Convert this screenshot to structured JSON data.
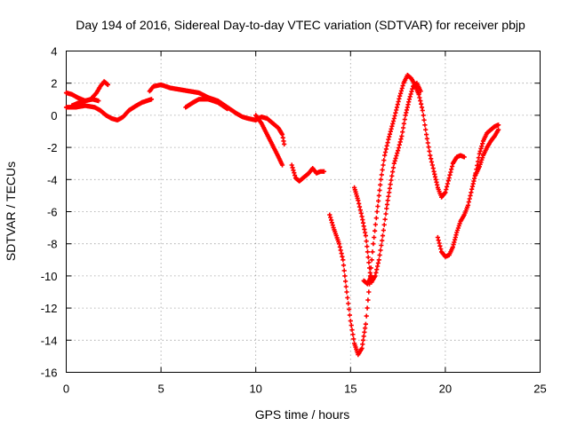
{
  "chart_data": {
    "type": "scatter",
    "title": "Day 194 of 2016, Sidereal Day-to-day VTEC variation (SDTVAR) for receiver pbjp",
    "xlabel": "GPS time / hours",
    "ylabel": "SDTVAR / TECUs",
    "xlim": [
      0,
      25
    ],
    "ylim": [
      -16,
      4
    ],
    "xticks": [
      0,
      5,
      10,
      15,
      20,
      25
    ],
    "yticks": [
      4,
      2,
      0,
      -2,
      -4,
      -6,
      -8,
      -10,
      -12,
      -14,
      -16
    ],
    "grid": true,
    "legend": "none",
    "marker": "plus",
    "color": "#ff0000",
    "series": [
      {
        "segments": [
          [
            [
              0.0,
              1.4
            ],
            [
              0.3,
              1.3
            ],
            [
              0.6,
              1.1
            ],
            [
              1.0,
              0.9
            ],
            [
              1.3,
              1.0
            ],
            [
              1.6,
              1.4
            ],
            [
              1.8,
              1.8
            ],
            [
              2.0,
              2.1
            ],
            [
              2.2,
              1.9
            ]
          ],
          [
            [
              0.0,
              0.5
            ],
            [
              0.5,
              0.5
            ],
            [
              1.0,
              0.6
            ],
            [
              1.5,
              0.5
            ],
            [
              1.8,
              0.3
            ],
            [
              2.1,
              0.0
            ],
            [
              2.4,
              -0.2
            ],
            [
              2.7,
              -0.3
            ],
            [
              3.0,
              -0.1
            ],
            [
              3.3,
              0.3
            ],
            [
              3.7,
              0.6
            ],
            [
              4.0,
              0.8
            ],
            [
              4.5,
              1.0
            ]
          ],
          [
            [
              0.3,
              0.6
            ],
            [
              0.7,
              0.8
            ],
            [
              1.0,
              0.9
            ],
            [
              1.4,
              1.0
            ],
            [
              1.7,
              0.9
            ]
          ],
          [
            [
              4.4,
              1.5
            ],
            [
              4.6,
              1.8
            ],
            [
              5.0,
              1.9
            ],
            [
              5.5,
              1.7
            ],
            [
              6.0,
              1.6
            ],
            [
              6.5,
              1.5
            ],
            [
              7.0,
              1.4
            ],
            [
              7.5,
              1.1
            ],
            [
              8.0,
              0.9
            ],
            [
              8.5,
              0.5
            ],
            [
              9.0,
              0.1
            ],
            [
              9.3,
              -0.1
            ],
            [
              9.6,
              -0.2
            ],
            [
              10.0,
              -0.3
            ],
            [
              10.3,
              -0.1
            ],
            [
              10.6,
              -0.2
            ],
            [
              11.0,
              -0.6
            ],
            [
              11.2,
              -0.8
            ],
            [
              11.4,
              -1.2
            ],
            [
              11.5,
              -1.8
            ]
          ],
          [
            [
              6.3,
              0.5
            ],
            [
              6.7,
              0.8
            ],
            [
              7.0,
              1.0
            ],
            [
              7.5,
              1.0
            ],
            [
              8.0,
              0.8
            ],
            [
              8.5,
              0.4
            ]
          ],
          [
            [
              10.0,
              0.0
            ],
            [
              10.3,
              -0.5
            ],
            [
              10.6,
              -1.2
            ],
            [
              10.9,
              -1.9
            ],
            [
              11.2,
              -2.6
            ],
            [
              11.4,
              -3.1
            ]
          ],
          [
            [
              11.9,
              -3.1
            ],
            [
              12.1,
              -3.9
            ],
            [
              12.3,
              -4.1
            ],
            [
              12.6,
              -3.8
            ],
            [
              12.8,
              -3.6
            ],
            [
              13.0,
              -3.3
            ],
            [
              13.2,
              -3.6
            ],
            [
              13.4,
              -3.5
            ],
            [
              13.6,
              -3.5
            ]
          ],
          [
            [
              13.9,
              -6.2
            ],
            [
              14.1,
              -7.0
            ],
            [
              14.4,
              -8.0
            ],
            [
              14.6,
              -9.0
            ],
            [
              14.8,
              -11.0
            ],
            [
              15.0,
              -12.8
            ],
            [
              15.2,
              -14.2
            ],
            [
              15.4,
              -14.9
            ],
            [
              15.6,
              -14.5
            ],
            [
              15.8,
              -13.0
            ],
            [
              16.0,
              -10.5
            ],
            [
              16.2,
              -8.0
            ],
            [
              16.4,
              -6.0
            ],
            [
              16.6,
              -4.0
            ],
            [
              16.8,
              -2.5
            ],
            [
              17.0,
              -1.5
            ],
            [
              17.3,
              -0.2
            ],
            [
              17.6,
              1.2
            ],
            [
              17.8,
              2.0
            ],
            [
              18.0,
              2.5
            ],
            [
              18.2,
              2.3
            ],
            [
              18.4,
              1.9
            ],
            [
              18.6,
              1.3
            ],
            [
              18.8,
              0.3
            ],
            [
              19.0,
              -1.2
            ],
            [
              19.2,
              -2.5
            ],
            [
              19.4,
              -3.5
            ],
            [
              19.6,
              -4.5
            ],
            [
              19.8,
              -5.1
            ],
            [
              20.0,
              -4.8
            ],
            [
              20.2,
              -3.9
            ],
            [
              20.4,
              -3.0
            ],
            [
              20.6,
              -2.6
            ],
            [
              20.8,
              -2.5
            ],
            [
              21.0,
              -2.6
            ]
          ],
          [
            [
              15.2,
              -4.5
            ],
            [
              15.4,
              -5.3
            ],
            [
              15.6,
              -6.3
            ],
            [
              15.8,
              -7.5
            ],
            [
              15.9,
              -8.5
            ],
            [
              16.0,
              -9.5
            ],
            [
              16.1,
              -10.4
            ],
            [
              16.3,
              -10.0
            ],
            [
              16.5,
              -9.0
            ],
            [
              16.7,
              -7.5
            ],
            [
              16.9,
              -5.8
            ],
            [
              17.1,
              -4.3
            ],
            [
              17.3,
              -3.0
            ],
            [
              17.5,
              -2.2
            ],
            [
              17.7,
              -1.3
            ],
            [
              17.9,
              0.0
            ],
            [
              18.1,
              1.0
            ],
            [
              18.3,
              1.8
            ],
            [
              18.5,
              2.0
            ],
            [
              18.7,
              1.5
            ]
          ],
          [
            [
              15.7,
              -10.3
            ],
            [
              15.9,
              -10.5
            ],
            [
              16.1,
              -10.0
            ]
          ],
          [
            [
              19.6,
              -7.6
            ],
            [
              19.8,
              -8.5
            ],
            [
              20.0,
              -8.8
            ],
            [
              20.2,
              -8.7
            ],
            [
              20.4,
              -8.2
            ],
            [
              20.6,
              -7.3
            ],
            [
              20.8,
              -6.6
            ],
            [
              21.0,
              -6.2
            ],
            [
              21.2,
              -5.6
            ],
            [
              21.4,
              -4.6
            ],
            [
              21.6,
              -3.6
            ],
            [
              21.8,
              -2.4
            ],
            [
              22.0,
              -1.6
            ],
            [
              22.2,
              -1.1
            ],
            [
              22.4,
              -0.9
            ],
            [
              22.6,
              -0.7
            ],
            [
              22.8,
              -0.6
            ]
          ],
          [
            [
              21.6,
              -3.7
            ],
            [
              21.8,
              -3.2
            ],
            [
              22.0,
              -2.5
            ],
            [
              22.2,
              -2.0
            ],
            [
              22.4,
              -1.6
            ],
            [
              22.6,
              -1.3
            ],
            [
              22.8,
              -0.9
            ]
          ]
        ]
      }
    ]
  }
}
